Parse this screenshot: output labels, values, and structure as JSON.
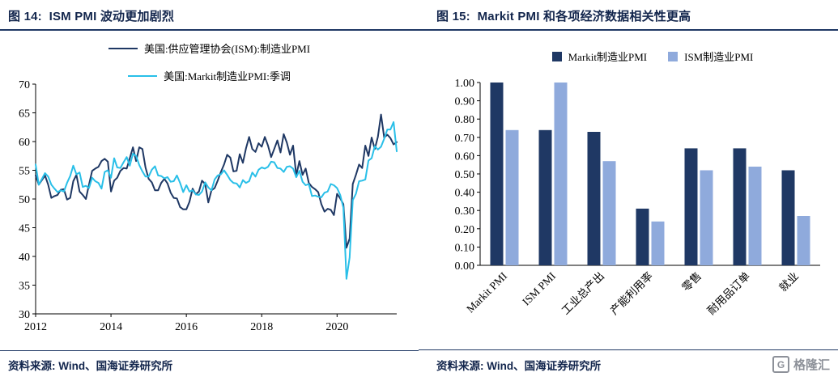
{
  "figures": [
    {
      "title": "图 14:  ISM PMI 波动更加剧烈",
      "source": "资料来源: Wind、国海证券研究所"
    },
    {
      "title": "图 15:  Markit PMI 和各项经济数据相关性更高",
      "source": "资料来源: Wind、国海证券研究所"
    }
  ],
  "logo": {
    "badge": "G",
    "text": "格隆汇"
  },
  "colors": {
    "navy": "#1f3864",
    "cyan": "#29bfe8",
    "light_blue": "#8faadc",
    "title_navy": "#13264d"
  },
  "chart_data": [
    {
      "type": "line",
      "title": "图 14: ISM PMI 波动更加剧烈",
      "x_start_year": 2012,
      "x_interval": "monthly",
      "xticks": [
        2012,
        2014,
        2016,
        2018,
        2020
      ],
      "ylim": [
        30,
        70
      ],
      "yticks": [
        30,
        35,
        40,
        45,
        50,
        55,
        60,
        65,
        70
      ],
      "grid": false,
      "legend_position": "top",
      "series": [
        {
          "name": "美国:供应管理协会(ISM):制造业PMI",
          "color": "#1f3864",
          "values": [
            54.1,
            52.5,
            53.3,
            54.1,
            52.5,
            50.2,
            50.5,
            50.7,
            51.6,
            51.7,
            49.9,
            50.2,
            53.1,
            54.2,
            51.3,
            50.7,
            50.0,
            52.5,
            54.9,
            55.3,
            55.6,
            56.6,
            57.0,
            56.5,
            51.3,
            53.2,
            53.7,
            54.9,
            55.4,
            55.3,
            57.1,
            59.0,
            56.6,
            59.0,
            58.7,
            55.5,
            53.5,
            52.9,
            51.5,
            51.5,
            52.8,
            53.5,
            52.7,
            51.1,
            50.2,
            50.1,
            48.6,
            48.2,
            48.2,
            49.5,
            51.8,
            50.8,
            51.3,
            53.2,
            52.6,
            49.4,
            51.5,
            51.9,
            53.2,
            54.7,
            56.0,
            57.7,
            57.2,
            54.8,
            54.9,
            57.8,
            56.3,
            58.8,
            60.8,
            58.7,
            58.2,
            59.7,
            59.1,
            60.8,
            59.3,
            57.3,
            58.7,
            60.2,
            58.1,
            61.3,
            59.8,
            57.7,
            59.3,
            54.1,
            56.6,
            54.2,
            55.3,
            52.8,
            52.1,
            51.7,
            51.2,
            49.1,
            47.8,
            48.3,
            48.1,
            47.2,
            50.9,
            50.1,
            49.1,
            41.5,
            43.1,
            52.6,
            54.2,
            56.0,
            55.4,
            59.3,
            57.5,
            60.7,
            58.7,
            60.8,
            64.7,
            60.7,
            61.2,
            60.6,
            59.5,
            59.9
          ]
        },
        {
          "name": "美国:Markit制造业PMI:季调",
          "color": "#29bfe8",
          "values": [
            56.0,
            52.5,
            53.5,
            54.5,
            53.9,
            52.5,
            51.8,
            51.2,
            51.5,
            51.3,
            52.8,
            54.0,
            55.8,
            54.3,
            54.6,
            52.1,
            52.3,
            51.9,
            53.7,
            53.1,
            52.8,
            51.8,
            54.7,
            55.0,
            53.7,
            57.1,
            55.5,
            55.4,
            56.4,
            57.3,
            55.8,
            57.9,
            57.5,
            55.9,
            54.8,
            53.9,
            53.9,
            55.1,
            55.7,
            54.1,
            54.0,
            53.6,
            53.8,
            53.0,
            53.1,
            54.1,
            52.8,
            51.2,
            52.4,
            51.3,
            51.5,
            50.8,
            50.7,
            51.3,
            52.9,
            52.0,
            51.5,
            53.4,
            54.1,
            54.3,
            55.0,
            54.2,
            53.3,
            52.8,
            52.7,
            52.0,
            53.3,
            52.8,
            53.1,
            54.6,
            53.9,
            55.1,
            55.5,
            55.3,
            55.6,
            56.5,
            56.4,
            55.4,
            55.3,
            54.7,
            55.6,
            55.7,
            55.3,
            53.8,
            54.9,
            53.0,
            52.4,
            52.6,
            50.5,
            50.6,
            50.4,
            50.3,
            51.1,
            51.3,
            52.6,
            52.4,
            51.9,
            50.7,
            48.5,
            36.1,
            39.8,
            49.8,
            50.9,
            53.1,
            53.2,
            53.4,
            56.7,
            57.1,
            59.2,
            58.6,
            59.1,
            60.5,
            62.1,
            62.1,
            63.4,
            58.3
          ]
        }
      ]
    },
    {
      "type": "bar",
      "title": "图 15: Markit PMI 和各项经济数据相关性更高",
      "categories": [
        "Markit PMI",
        "ISM PMI",
        "工业总产出",
        "产能利用率",
        "零售",
        "耐用品订单",
        "就业"
      ],
      "ylim": [
        0,
        1.0
      ],
      "ytick_step": 0.1,
      "grid": false,
      "legend_position": "top",
      "series": [
        {
          "name": "Markit制造业PMI",
          "color": "#1f3864",
          "values": [
            1.0,
            0.74,
            0.73,
            0.31,
            0.64,
            0.64,
            0.52
          ]
        },
        {
          "name": "ISM制造业PMI",
          "color": "#8faadc",
          "values": [
            0.74,
            1.0,
            0.57,
            0.24,
            0.52,
            0.54,
            0.27
          ]
        }
      ]
    }
  ]
}
